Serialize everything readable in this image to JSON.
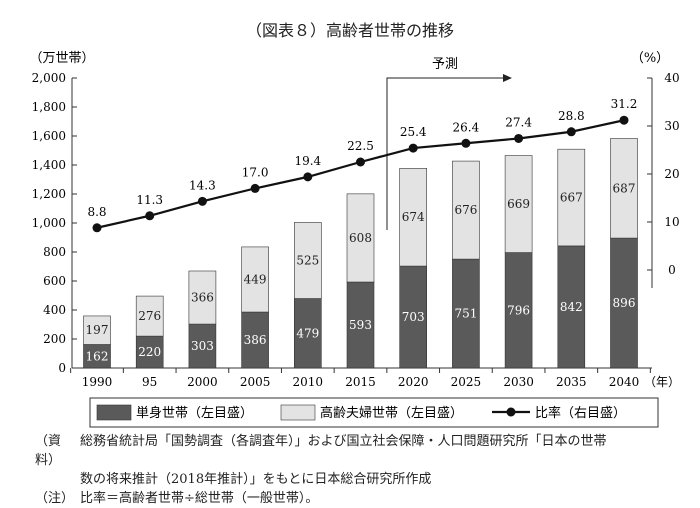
{
  "chart_data": {
    "type": "bar",
    "title": "（図表８）高齢者世帯の推移",
    "ylabel_left": "（万世帯）",
    "ylabel_right": "（%）",
    "xlabel_unit": "（年）",
    "categories": [
      "1990",
      "95",
      "2000",
      "2005",
      "2010",
      "2015",
      "2020",
      "2025",
      "2030",
      "2035",
      "2040"
    ],
    "ylim_left": [
      0,
      2000
    ],
    "yticks_left": [
      "0",
      "200",
      "400",
      "600",
      "800",
      "1,000",
      "1,200",
      "1,400",
      "1,600",
      "1,800",
      "2,000"
    ],
    "ylim_right": [
      0,
      40
    ],
    "yticks_right": [
      "0",
      "10",
      "20",
      "30",
      "40"
    ],
    "series": [
      {
        "name": "単身世帯（左目盛）",
        "type": "stacked-bar",
        "axis": "left",
        "color": "#5a5a5a",
        "values": [
          162,
          220,
          303,
          386,
          479,
          593,
          703,
          751,
          796,
          842,
          896
        ]
      },
      {
        "name": "高齢夫婦世帯（左目盛）",
        "type": "stacked-bar",
        "axis": "left",
        "color": "#e3e3e3",
        "values": [
          197,
          276,
          366,
          449,
          525,
          608,
          674,
          676,
          669,
          667,
          687
        ]
      },
      {
        "name": "比率（右目盛）",
        "type": "line",
        "axis": "right",
        "color": "#111111",
        "values": [
          8.8,
          11.3,
          14.3,
          17.0,
          19.4,
          22.5,
          25.4,
          26.4,
          27.4,
          28.8,
          31.2
        ],
        "labels": [
          "8.8",
          "11.3",
          "14.3",
          "17.0",
          "19.4",
          "22.5",
          "25.4",
          "26.4",
          "27.4",
          "28.8",
          "31.2"
        ]
      }
    ],
    "annotation": "予測",
    "legend_position": "bottom"
  },
  "notes": {
    "source_label": "（資料）",
    "source_line1": "総務省統計局「国勢調査（各調査年）」および国立社会保障・人口問題研究所「日本の世帯",
    "source_line2": "数の将来推計（2018年推計）」をもとに日本総合研究所作成",
    "note_label": "（注）",
    "note_text": "比率＝高齢者世帯÷総世帯（一般世帯）。"
  }
}
